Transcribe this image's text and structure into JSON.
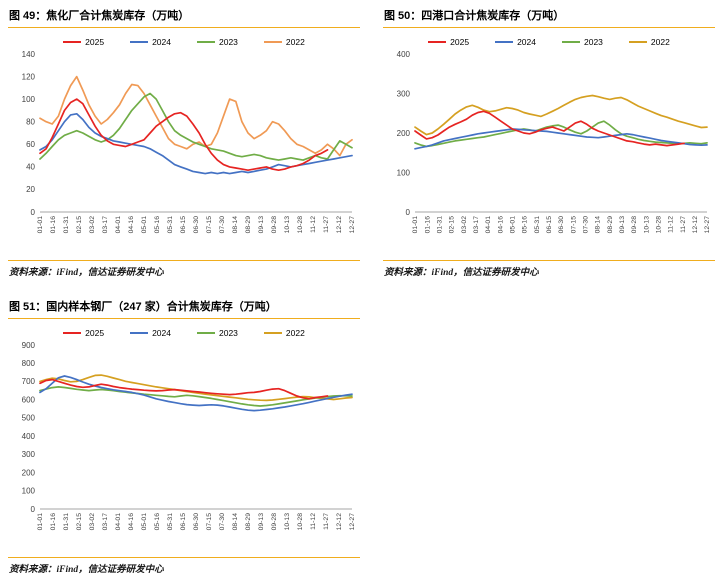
{
  "page": {
    "background": "#ffffff"
  },
  "colors": {
    "rule_gold": "#F0AD1E",
    "axis_text": "#404040",
    "axis_line": "#a6a6a6"
  },
  "panels": [
    {
      "title": "图 49：焦化厂合计焦炭库存（万吨）",
      "source": "资料来源：iFind，信达证券研发中心"
    },
    {
      "title": "图 50：四港口合计焦炭库存（万吨）",
      "source": "资料来源：iFind，信达证券研发中心"
    },
    {
      "title": "图 51：国内样本钢厂（247 家）合计焦炭库存（万吨）",
      "source": "资料来源：iFind，信达证券研发中心"
    }
  ],
  "chart_data": [
    {
      "type": "line",
      "title": "焦化厂合计焦炭库存（万吨）",
      "ylim": [
        0,
        140
      ],
      "y_tick_labels": [
        "0",
        "20",
        "40",
        "60",
        "80",
        "100",
        "120",
        "140"
      ],
      "x_count": 52,
      "x_tick_labels": [
        "01-01",
        "01-16",
        "01-31",
        "02-15",
        "03-02",
        "03-17",
        "04-01",
        "04-16",
        "05-01",
        "05-16",
        "05-31",
        "06-15",
        "06-30",
        "07-15",
        "07-30",
        "08-14",
        "08-29",
        "09-13",
        "09-28",
        "10-13",
        "10-28",
        "11-12",
        "11-27",
        "12-12",
        "12-27"
      ],
      "grid": false,
      "legend_position": "top",
      "series": [
        {
          "name": "2025",
          "color": "#e62422",
          "values": [
            52,
            56,
            66,
            78,
            90,
            97,
            100,
            96,
            86,
            76,
            68,
            63,
            60,
            59,
            58,
            60,
            62,
            64,
            70,
            76,
            80,
            84,
            87,
            88,
            85,
            78,
            70,
            60,
            52,
            46,
            42,
            40,
            39,
            38,
            37,
            38,
            39,
            40,
            38,
            37,
            38,
            40,
            41,
            43,
            46,
            50,
            52,
            55
          ]
        },
        {
          "name": "2024",
          "color": "#4472C4",
          "values": [
            55,
            58,
            64,
            72,
            80,
            86,
            87,
            82,
            75,
            70,
            67,
            65,
            63,
            62,
            61,
            60,
            59,
            58,
            56,
            53,
            50,
            46,
            42,
            40,
            38,
            36,
            35,
            34,
            35,
            34,
            35,
            34,
            35,
            36,
            35,
            36,
            37,
            38,
            40,
            42,
            41,
            40,
            41,
            42,
            43,
            44,
            45,
            46,
            47,
            48,
            49,
            50
          ]
        },
        {
          "name": "2023",
          "color": "#70AD47",
          "values": [
            47,
            52,
            58,
            64,
            68,
            70,
            72,
            70,
            67,
            64,
            62,
            64,
            68,
            74,
            82,
            90,
            96,
            102,
            105,
            100,
            90,
            80,
            72,
            68,
            65,
            62,
            60,
            58,
            56,
            55,
            54,
            52,
            50,
            49,
            50,
            51,
            50,
            48,
            47,
            46,
            47,
            48,
            47,
            46,
            48,
            50,
            48,
            47,
            55,
            63,
            60,
            57
          ]
        },
        {
          "name": "2022",
          "color": "#F09A55",
          "values": [
            83,
            80,
            78,
            85,
            100,
            112,
            120,
            108,
            95,
            85,
            78,
            82,
            88,
            95,
            105,
            113,
            112,
            105,
            95,
            85,
            75,
            65,
            60,
            58,
            56,
            60,
            62,
            58,
            60,
            70,
            85,
            100,
            98,
            80,
            70,
            65,
            68,
            72,
            80,
            78,
            72,
            65,
            60,
            58,
            55,
            52,
            55,
            60,
            56,
            50,
            60,
            64
          ]
        }
      ]
    },
    {
      "type": "line",
      "title": "四港口合计焦炭库存（万吨）",
      "ylim": [
        0,
        400
      ],
      "y_tick_labels": [
        "0",
        "100",
        "200",
        "300",
        "400"
      ],
      "x_count": 52,
      "x_tick_labels": [
        "01-01",
        "01-16",
        "01-31",
        "02-15",
        "03-02",
        "03-17",
        "04-01",
        "04-16",
        "05-01",
        "05-16",
        "05-31",
        "06-15",
        "06-30",
        "07-15",
        "07-30",
        "08-14",
        "08-29",
        "09-13",
        "09-28",
        "10-13",
        "10-28",
        "11-12",
        "11-27",
        "12-12",
        "12-27"
      ],
      "grid": false,
      "legend_position": "top",
      "series": [
        {
          "name": "2025",
          "color": "#e62422",
          "values": [
            205,
            195,
            185,
            188,
            195,
            205,
            215,
            222,
            228,
            235,
            245,
            252,
            255,
            250,
            240,
            230,
            220,
            210,
            205,
            200,
            198,
            202,
            208,
            212,
            215,
            210,
            205,
            215,
            225,
            230,
            222,
            212,
            205,
            200,
            195,
            190,
            185,
            180,
            178,
            175,
            172,
            170,
            172,
            170,
            168,
            170,
            172,
            174
          ]
        },
        {
          "name": "2024",
          "color": "#4472C4",
          "values": [
            160,
            163,
            166,
            170,
            175,
            180,
            183,
            186,
            189,
            192,
            195,
            198,
            200,
            202,
            204,
            206,
            208,
            210,
            209,
            208,
            207,
            206,
            205,
            204,
            202,
            200,
            198,
            196,
            194,
            192,
            190,
            189,
            188,
            190,
            192,
            194,
            196,
            198,
            196,
            193,
            190,
            187,
            184,
            181,
            179,
            177,
            175,
            173,
            171,
            170,
            169,
            170
          ]
        },
        {
          "name": "2023",
          "color": "#70AD47",
          "values": [
            175,
            170,
            166,
            168,
            171,
            174,
            177,
            180,
            182,
            184,
            186,
            188,
            190,
            193,
            196,
            199,
            202,
            205,
            208,
            210,
            208,
            205,
            210,
            215,
            218,
            220,
            215,
            208,
            202,
            198,
            205,
            215,
            225,
            230,
            220,
            208,
            198,
            192,
            188,
            184,
            181,
            179,
            177,
            176,
            175,
            174,
            173,
            174,
            175,
            174,
            173,
            175
          ]
        },
        {
          "name": "2022",
          "color": "#D5A021",
          "values": [
            215,
            205,
            196,
            200,
            210,
            222,
            235,
            248,
            258,
            266,
            270,
            265,
            258,
            254,
            256,
            260,
            264,
            262,
            258,
            252,
            248,
            245,
            242,
            248,
            255,
            262,
            270,
            278,
            285,
            290,
            293,
            295,
            292,
            288,
            285,
            288,
            290,
            284,
            276,
            268,
            262,
            256,
            250,
            244,
            240,
            235,
            230,
            226,
            222,
            218,
            214,
            215
          ]
        }
      ]
    },
    {
      "type": "line",
      "title": "国内样本钢厂（247 家）合计焦炭库存（万吨）",
      "ylim": [
        0,
        900
      ],
      "y_tick_labels": [
        "0",
        "100",
        "200",
        "300",
        "400",
        "500",
        "600",
        "700",
        "800",
        "900"
      ],
      "x_count": 52,
      "x_tick_labels": [
        "01-01",
        "01-16",
        "01-31",
        "02-15",
        "03-02",
        "03-17",
        "04-01",
        "04-16",
        "05-01",
        "05-16",
        "05-31",
        "06-15",
        "06-30",
        "07-15",
        "07-30",
        "08-14",
        "08-29",
        "09-13",
        "09-28",
        "10-13",
        "10-28",
        "11-12",
        "11-27",
        "12-12",
        "12-27"
      ],
      "grid": false,
      "legend_position": "top",
      "series": [
        {
          "name": "2025",
          "color": "#e62422",
          "values": [
            690,
            705,
            710,
            700,
            690,
            680,
            672,
            668,
            670,
            678,
            685,
            680,
            672,
            666,
            662,
            658,
            655,
            652,
            650,
            648,
            650,
            653,
            655,
            652,
            648,
            645,
            642,
            638,
            635,
            632,
            630,
            628,
            630,
            634,
            638,
            640,
            645,
            652,
            658,
            660,
            650,
            635,
            620,
            610,
            605,
            612,
            616,
            620
          ]
        },
        {
          "name": "2024",
          "color": "#4472C4",
          "values": [
            640,
            660,
            690,
            720,
            730,
            722,
            710,
            697,
            685,
            675,
            667,
            660,
            654,
            649,
            645,
            640,
            633,
            625,
            615,
            605,
            597,
            590,
            584,
            578,
            573,
            570,
            568,
            570,
            572,
            570,
            566,
            560,
            553,
            547,
            542,
            540,
            542,
            546,
            550,
            555,
            560,
            566,
            572,
            578,
            585,
            592,
            599,
            606,
            613,
            619,
            625,
            630
          ]
        },
        {
          "name": "2023",
          "color": "#70AD47",
          "values": [
            650,
            658,
            666,
            670,
            667,
            662,
            657,
            653,
            650,
            653,
            656,
            653,
            649,
            645,
            641,
            637,
            634,
            630,
            627,
            624,
            621,
            618,
            616,
            620,
            624,
            621,
            617,
            612,
            607,
            601,
            595,
            589,
            583,
            577,
            572,
            568,
            565,
            568,
            572,
            577,
            582,
            588,
            593,
            599,
            604,
            609,
            613,
            617,
            620,
            622,
            621,
            620
          ]
        },
        {
          "name": "2022",
          "color": "#D5A021",
          "values": [
            700,
            710,
            718,
            714,
            705,
            698,
            700,
            710,
            722,
            733,
            735,
            728,
            719,
            710,
            701,
            694,
            688,
            682,
            676,
            670,
            665,
            660,
            655,
            650,
            645,
            640,
            635,
            630,
            626,
            622,
            618,
            614,
            610,
            606,
            602,
            599,
            597,
            596,
            598,
            602,
            606,
            610,
            614,
            617,
            615,
            611,
            607,
            604,
            601,
            605,
            609,
            612
          ]
        }
      ]
    }
  ]
}
